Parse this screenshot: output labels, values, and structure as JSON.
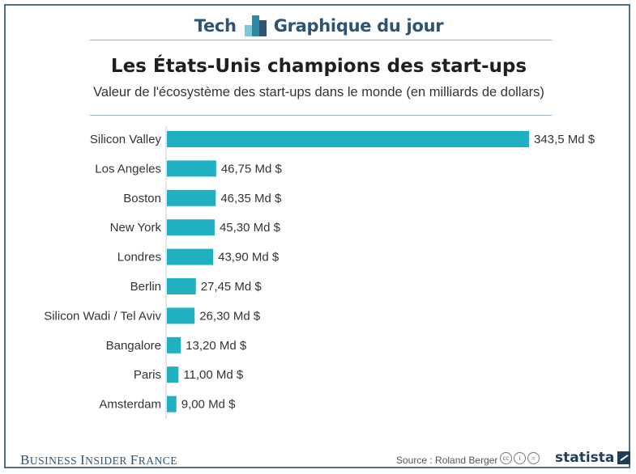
{
  "header": {
    "left": "Tech",
    "right": "Graphique du jour",
    "icon": "bar-chart-logo-icon"
  },
  "title": "Les États-Unis champions des start-ups",
  "subtitle": "Valeur de l'écosystème des start-ups dans le monde (en milliards de dollars)",
  "colors": {
    "bar": "#1fb1c1",
    "accent": "#2d5473",
    "frame": "#4d6f88"
  },
  "chart_data": {
    "type": "bar",
    "orientation": "horizontal",
    "categories": [
      "Silicon Valley",
      "Los Angeles",
      "Boston",
      "New York",
      "Londres",
      "Berlin",
      "Silicon Wadi / Tel Aviv",
      "Bangalore",
      "Paris",
      "Amsterdam"
    ],
    "values": [
      343.5,
      46.75,
      46.35,
      45.3,
      43.9,
      27.45,
      26.3,
      13.2,
      11.0,
      9.0
    ],
    "labels": [
      "343,5 Md $",
      "46,75 Md $",
      "46,35 Md $",
      "45,30 Md $",
      "43,90 Md $",
      "27,45 Md $",
      "26,30 Md $",
      "13,20 Md $",
      "11,00 Md $",
      "9,00 Md $"
    ],
    "title": "Les États-Unis champions des start-ups",
    "xlabel": "",
    "ylabel": "",
    "xlim": [
      0,
      343.5
    ],
    "grid": false
  },
  "footer": {
    "publisher_first": "B",
    "publisher_first_rest": "USINESS ",
    "publisher_second": "I",
    "publisher_second_rest": "NSIDER ",
    "publisher_third": "F",
    "publisher_third_rest": "RANCE",
    "source": "Source : Roland Berger",
    "license_icons": [
      "cc-icon",
      "by-icon",
      "nd-icon"
    ],
    "brand": "statista"
  }
}
